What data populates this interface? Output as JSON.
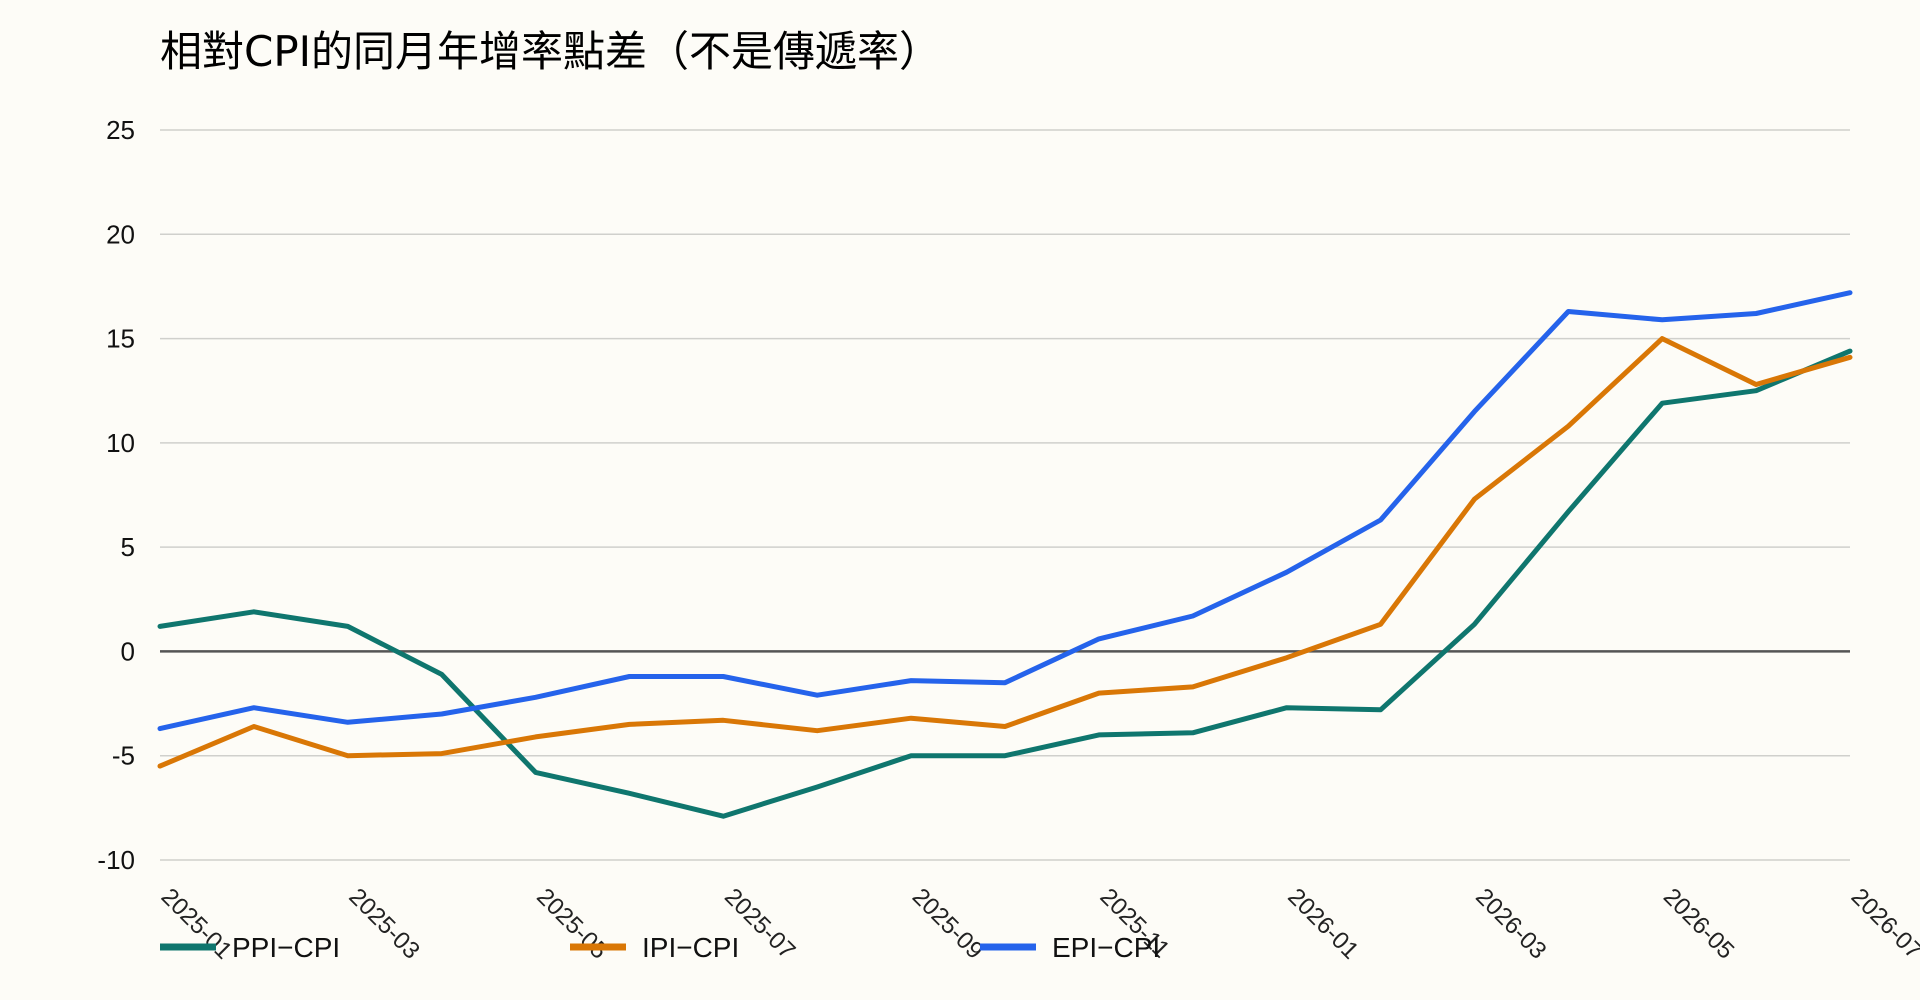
{
  "chart_data": {
    "type": "line",
    "title": "相對CPI的同月年增率點差（不是傳遞率）",
    "xlabel": "",
    "ylabel": "",
    "x": [
      "2025-01",
      "2025-02",
      "2025-03",
      "2025-04",
      "2025-05",
      "2025-06",
      "2025-07",
      "2025-08",
      "2025-09",
      "2025-10",
      "2025-11",
      "2025-12",
      "2026-01",
      "2026-02",
      "2026-03",
      "2026-04",
      "2026-05",
      "2026-06",
      "2026-07"
    ],
    "x_tick_labels": [
      "2025-01",
      "2025-03",
      "2025-05",
      "2025-07",
      "2025-09",
      "2025-11",
      "2026-01",
      "2026-03",
      "2026-05",
      "2026-07"
    ],
    "ylim": [
      -10,
      25
    ],
    "y_ticks": [
      -10,
      -5,
      0,
      5,
      10,
      15,
      20,
      25
    ],
    "grid": true,
    "legend_position": "bottom-left",
    "series": [
      {
        "name": "PPI−CPI",
        "color": "#0f766e",
        "values": [
          1.2,
          1.9,
          1.2,
          -1.1,
          -5.8,
          -6.8,
          -7.9,
          -6.5,
          -5.0,
          -5.0,
          -4.0,
          -3.9,
          -2.7,
          -2.8,
          1.3,
          6.7,
          11.9,
          12.5,
          14.4
        ]
      },
      {
        "name": "IPI−CPI",
        "color": "#d97706",
        "values": [
          -5.5,
          -3.6,
          -5.0,
          -4.9,
          -4.1,
          -3.5,
          -3.3,
          -3.8,
          -3.2,
          -3.6,
          -2.0,
          -1.7,
          -0.3,
          1.3,
          7.3,
          10.8,
          15.0,
          12.8,
          14.1
        ]
      },
      {
        "name": "EPI−CPI",
        "color": "#2563eb",
        "values": [
          -3.7,
          -2.7,
          -3.4,
          -3.0,
          -2.2,
          -1.2,
          -1.2,
          -2.1,
          -1.4,
          -1.5,
          0.6,
          1.7,
          3.8,
          6.3,
          11.5,
          16.3,
          15.9,
          16.2,
          17.2
        ]
      }
    ]
  }
}
